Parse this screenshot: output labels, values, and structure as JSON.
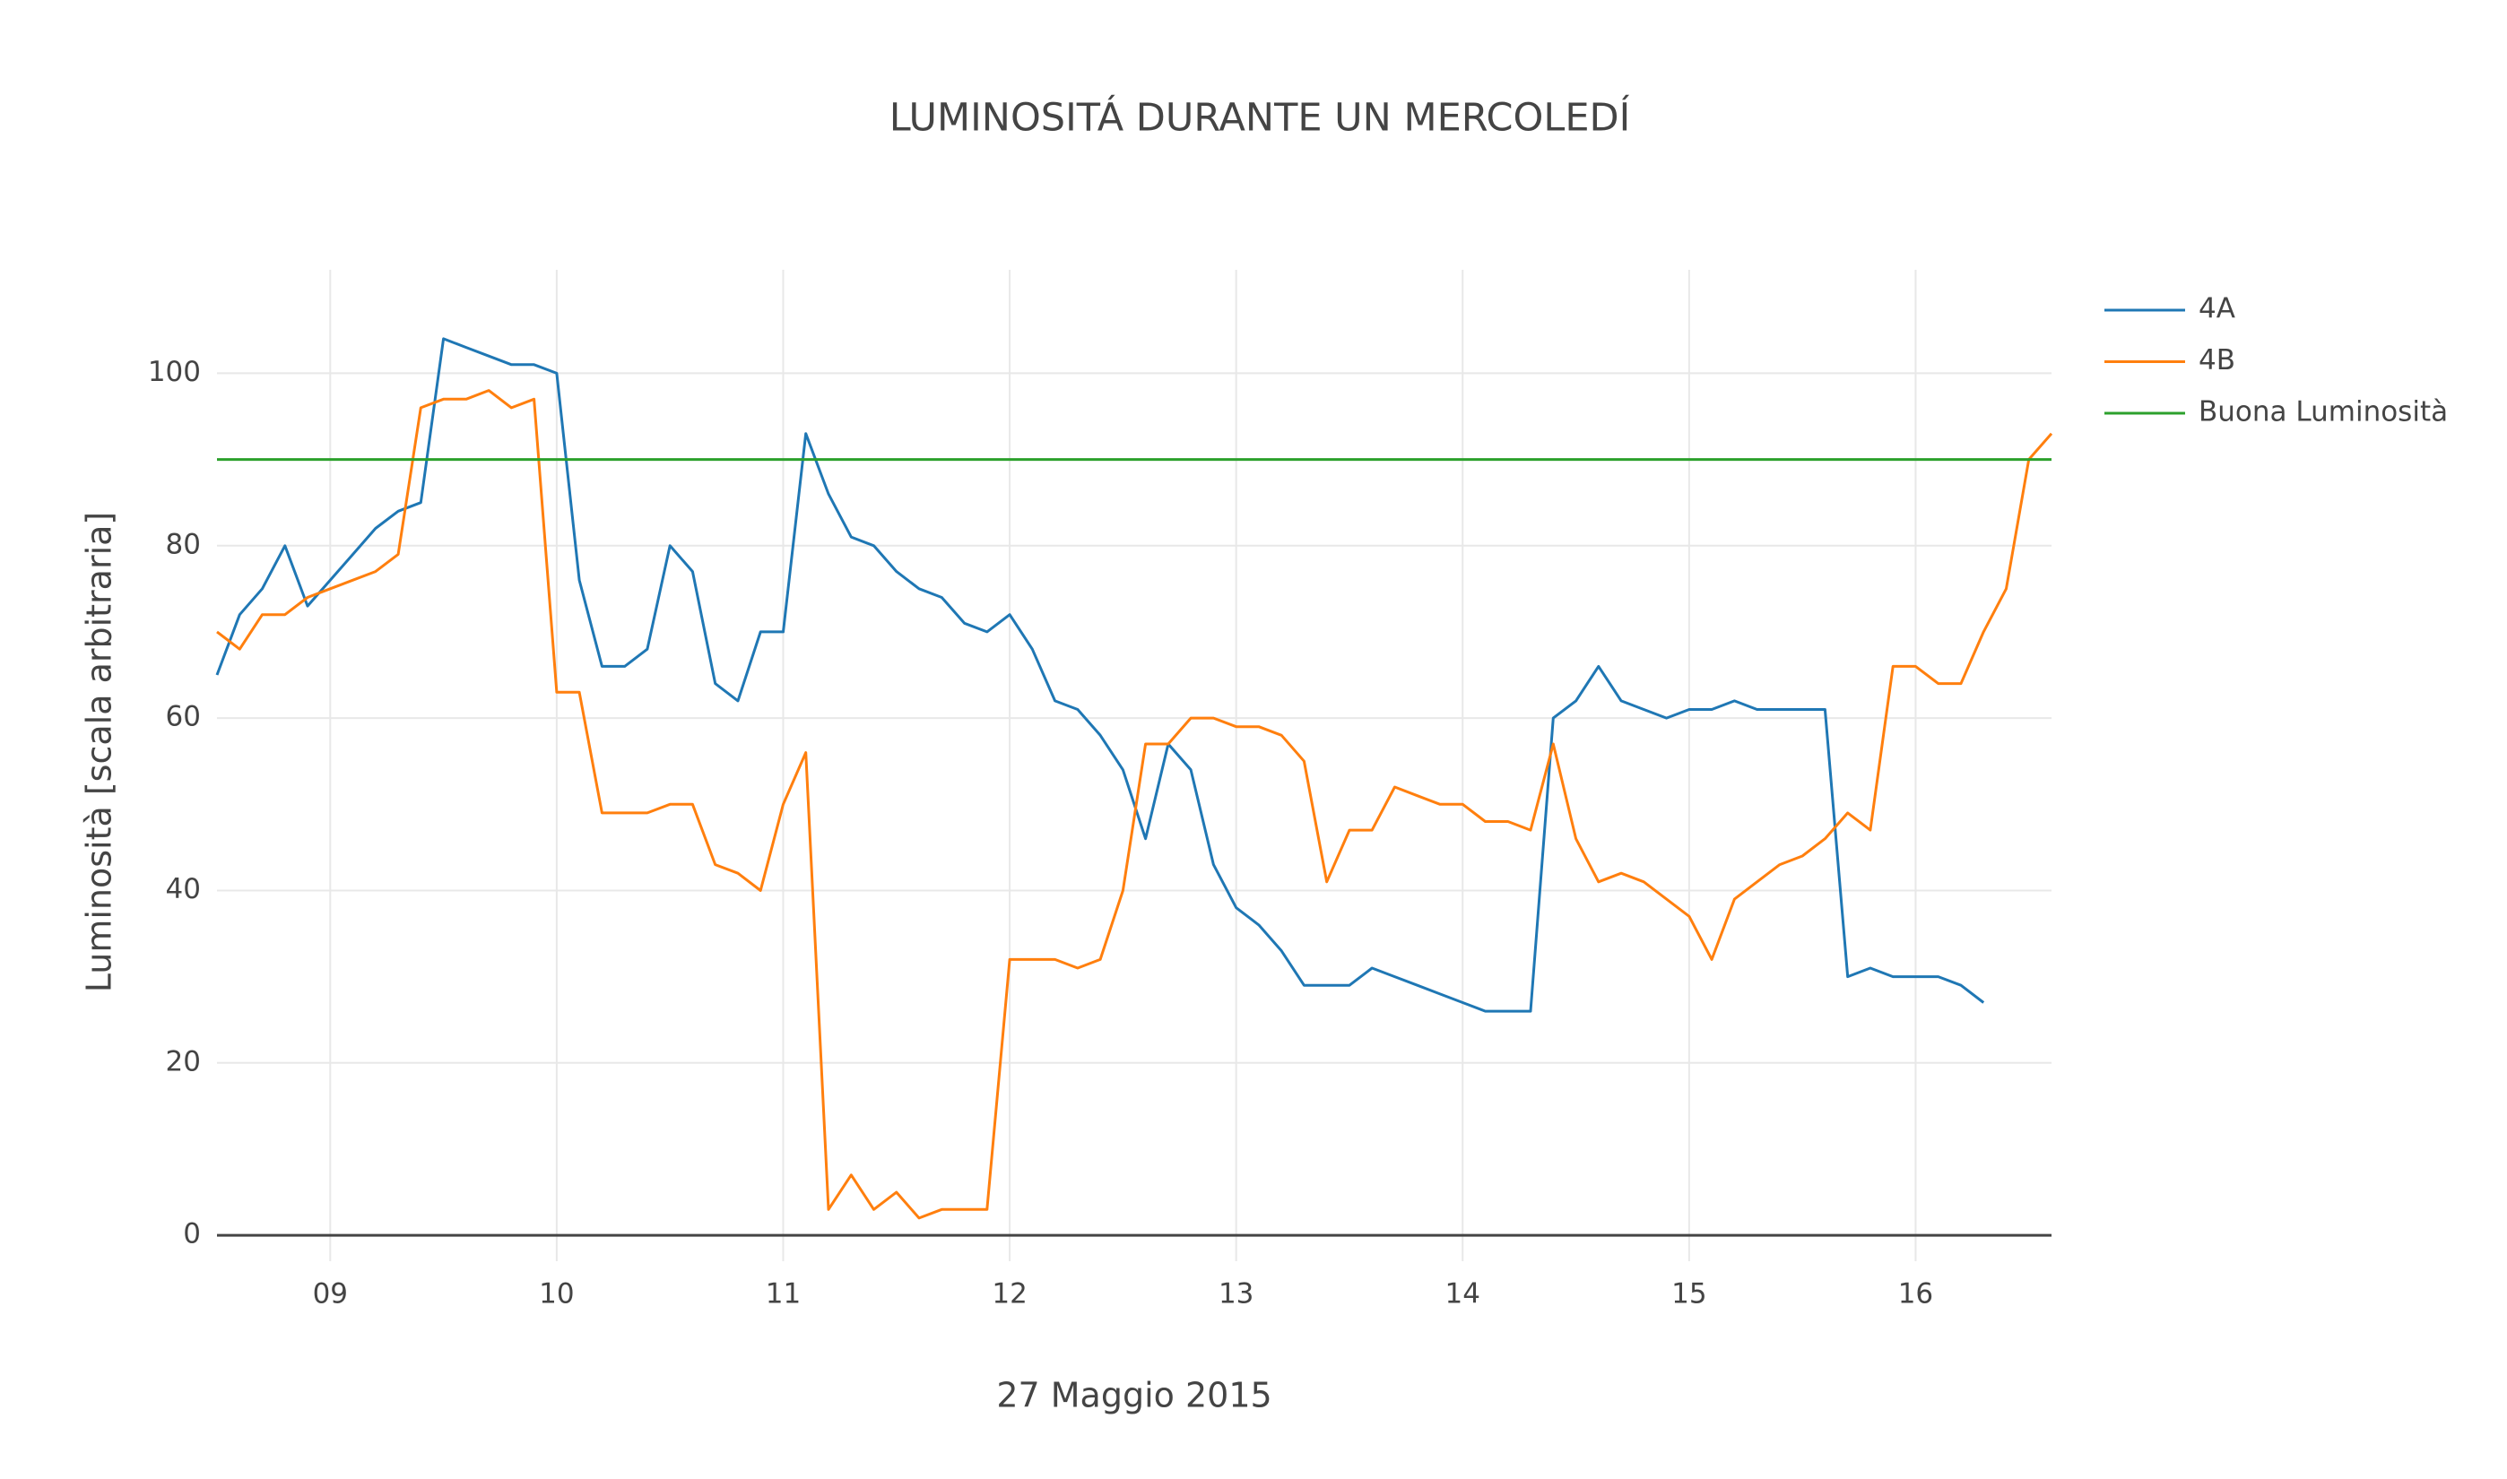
{
  "chart_data": {
    "type": "line",
    "title": "LUMINOSITÁ DURANTE UN MERCOLEDÍ",
    "x_label": "27 Maggio 2015",
    "y_label": "Luminosità [scala arbitraria]",
    "xlim": [
      8.5,
      16.6
    ],
    "ylim": [
      -3,
      112
    ],
    "xticks": [
      {
        "value": 9,
        "label": "09"
      },
      10,
      11,
      12,
      13,
      14,
      15,
      16
    ],
    "yticks": [
      0,
      20,
      40,
      60,
      80,
      100
    ],
    "grid": true,
    "legend": "right",
    "x": [
      8.5,
      8.6,
      8.7,
      8.8,
      8.9,
      9.0,
      9.1,
      9.2,
      9.3,
      9.4,
      9.5,
      9.6,
      9.7,
      9.8,
      9.9,
      10.0,
      10.1,
      10.2,
      10.3,
      10.4,
      10.5,
      10.6,
      10.7,
      10.8,
      10.9,
      11.0,
      11.1,
      11.2,
      11.3,
      11.4,
      11.5,
      11.6,
      11.7,
      11.8,
      11.9,
      12.0,
      12.1,
      12.2,
      12.3,
      12.4,
      12.5,
      12.6,
      12.7,
      12.8,
      12.9,
      13.0,
      13.1,
      13.2,
      13.3,
      13.4,
      13.5,
      13.6,
      13.7,
      13.8,
      13.9,
      14.0,
      14.1,
      14.2,
      14.3,
      14.4,
      14.5,
      14.6,
      14.7,
      14.8,
      14.9,
      15.0,
      15.1,
      15.2,
      15.3,
      15.4,
      15.5,
      15.6,
      15.7,
      15.8,
      15.9,
      16.0,
      16.1,
      16.2,
      16.3,
      16.4,
      16.5,
      16.6
    ],
    "series": [
      {
        "name": "4A",
        "color": "#1f77b4",
        "values": [
          65,
          72,
          75,
          80,
          73,
          76,
          79,
          82,
          84,
          85,
          104,
          103,
          102,
          101,
          101,
          100,
          76,
          66,
          66,
          68,
          80,
          77,
          64,
          62,
          70,
          70,
          93,
          86,
          81,
          80,
          77,
          75,
          74,
          71,
          70,
          72,
          68,
          62,
          61,
          58,
          54,
          46,
          57,
          54,
          43,
          38,
          36,
          33,
          29,
          29,
          29,
          31,
          30,
          29,
          28,
          27,
          26,
          26,
          26,
          60,
          62,
          66,
          62,
          61,
          60,
          61,
          61,
          62,
          61,
          61,
          61,
          61,
          30,
          31,
          30,
          30,
          30,
          29,
          27,
          null,
          null,
          null
        ]
      },
      {
        "name": "4B",
        "color": "#ff7f0e",
        "values": [
          70,
          68,
          72,
          72,
          74,
          75,
          76,
          77,
          79,
          96,
          97,
          97,
          98,
          96,
          97,
          63,
          63,
          49,
          49,
          49,
          50,
          50,
          43,
          42,
          40,
          50,
          56,
          3,
          7,
          3,
          5,
          2,
          3,
          3,
          3,
          32,
          32,
          32,
          31,
          32,
          40,
          57,
          57,
          60,
          60,
          59,
          59,
          58,
          55,
          41,
          47,
          47,
          52,
          51,
          50,
          50,
          48,
          48,
          47,
          57,
          46,
          41,
          42,
          41,
          39,
          37,
          32,
          39,
          41,
          43,
          44,
          46,
          49,
          47,
          66,
          66,
          64,
          64,
          70,
          75,
          90,
          93
        ]
      },
      {
        "name": "Buona Luminosità",
        "color": "#2ca02c",
        "x": [
          8.5,
          16.6
        ],
        "values": [
          90,
          90
        ]
      }
    ]
  }
}
